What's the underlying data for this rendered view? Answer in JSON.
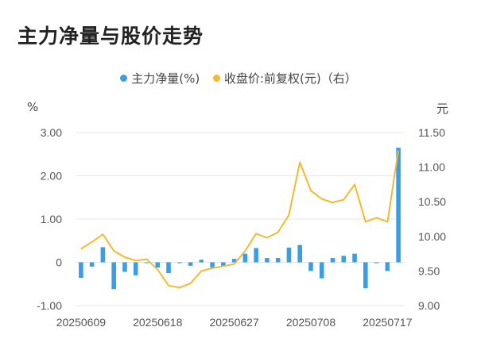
{
  "title": "主力净量与股价走势",
  "colors": {
    "bar": "#3a9ee6",
    "line": "#f5b82e",
    "grid": "#e5e5e5",
    "text": "#555555"
  },
  "chart_data": {
    "type": "bar",
    "legend": [
      {
        "label": "主力净量(%)",
        "color": "#3a9ee6",
        "shape": "dot"
      },
      {
        "label": "收盘价:前复权(元)（右）",
        "color": "#f5b82e",
        "shape": "dot"
      }
    ],
    "legend_position": "top-center",
    "left_axis": {
      "unit": "%",
      "ticks": [
        "3.00",
        "2.00",
        "1.00",
        "0",
        "-1.00"
      ],
      "range": [
        -1,
        3
      ]
    },
    "right_axis": {
      "unit": "元",
      "ticks": [
        "11.50",
        "11.00",
        "10.50",
        "10.00",
        "9.50",
        "9.00"
      ],
      "range": [
        9,
        11.5
      ]
    },
    "x_tick_labels": [
      "20250609",
      "20250618",
      "20250627",
      "20250708",
      "20250717"
    ],
    "x_tick_indices": [
      0,
      7,
      14,
      21,
      28
    ],
    "grid": "horizontal",
    "series": [
      {
        "name": "主力净量(%)",
        "type": "bar",
        "axis": "left",
        "values": [
          -0.36,
          -0.1,
          0.35,
          -0.62,
          -0.22,
          -0.3,
          -0.01,
          -0.12,
          -0.25,
          -0.02,
          -0.08,
          0.06,
          -0.12,
          -0.1,
          0.08,
          0.2,
          0.33,
          0.1,
          0.1,
          0.34,
          0.4,
          -0.2,
          -0.37,
          0.1,
          0.15,
          0.2,
          -0.6,
          -0.02,
          -0.2,
          2.65
        ]
      },
      {
        "name": "收盘价:前复权(元)（右）",
        "type": "line",
        "axis": "right",
        "values": [
          9.82,
          9.92,
          10.03,
          9.79,
          9.7,
          9.65,
          9.67,
          9.52,
          9.29,
          9.26,
          9.32,
          9.5,
          9.54,
          9.57,
          9.6,
          9.79,
          10.04,
          9.98,
          10.06,
          10.31,
          11.07,
          10.66,
          10.54,
          10.49,
          10.53,
          10.75,
          10.21,
          10.27,
          10.21,
          11.24
        ]
      }
    ]
  }
}
